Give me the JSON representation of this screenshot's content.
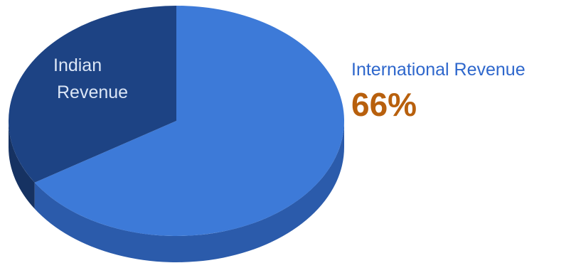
{
  "chart_data": {
    "type": "pie",
    "style": "3d",
    "slices": [
      {
        "label_lines": [
          "International",
          "Revenue"
        ],
        "label": "International Revenue",
        "value": 66,
        "value_label": "66%",
        "color": "#3d7ad8",
        "side_color": "#2b5bab"
      },
      {
        "label_lines": [
          "Indian",
          "Revenue"
        ],
        "label": "Indian Revenue",
        "value": 34,
        "color": "#1d4384",
        "side_color": "#163262"
      }
    ],
    "colors": {
      "indian_label": "#dbe6f6",
      "international_label": "#2e67cc",
      "value_label": "#b8600d"
    }
  }
}
